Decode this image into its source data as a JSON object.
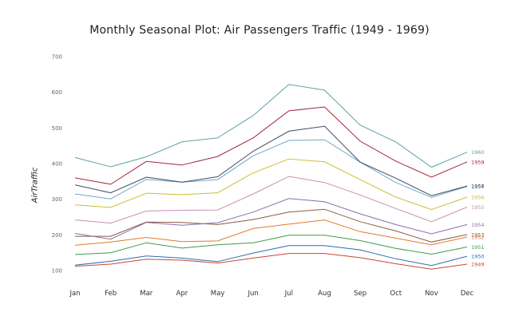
{
  "chart_data": {
    "type": "line",
    "title": "Monthly Seasonal Plot: Air Passengers Traffic (1949 - 1969)",
    "xlabel": "",
    "ylabel": "AirTraffic",
    "categories": [
      "Jan",
      "Feb",
      "Mar",
      "Apr",
      "May",
      "Jun",
      "Jul",
      "Aug",
      "Sep",
      "Oct",
      "Nov",
      "Dec"
    ],
    "ylim": [
      50,
      730
    ],
    "yticks": [
      100,
      200,
      300,
      400,
      500,
      600,
      700
    ],
    "ytick_labels": [
      "100",
      "200",
      "300",
      "400",
      "500",
      "600",
      "700"
    ],
    "grid": false,
    "series": [
      {
        "name": "1949",
        "color": "#c8473b",
        "values": [
          112,
          118,
          132,
          129,
          121,
          135,
          148,
          148,
          136,
          119,
          104,
          118
        ]
      },
      {
        "name": "1950",
        "color": "#2a6fb0",
        "values": [
          115,
          126,
          141,
          135,
          125,
          149,
          170,
          170,
          158,
          133,
          114,
          140
        ]
      },
      {
        "name": "1951",
        "color": "#3d9b4a",
        "values": [
          145,
          150,
          178,
          163,
          172,
          178,
          199,
          199,
          184,
          162,
          146,
          166
        ]
      },
      {
        "name": "1952",
        "color": "#e0792c",
        "values": [
          171,
          180,
          193,
          181,
          183,
          218,
          230,
          242,
          209,
          191,
          172,
          194
        ]
      },
      {
        "name": "1953",
        "color": "#8a5a44",
        "values": [
          196,
          196,
          236,
          235,
          229,
          243,
          264,
          272,
          237,
          211,
          180,
          201
        ]
      },
      {
        "name": "1954",
        "color": "#8b6fa8",
        "values": [
          204,
          188,
          235,
          227,
          234,
          264,
          302,
          293,
          259,
          229,
          203,
          229
        ]
      },
      {
        "name": "1955",
        "color": "#c98fb8",
        "values": [
          242,
          233,
          267,
          269,
          270,
          315,
          364,
          347,
          312,
          274,
          237,
          278
        ]
      },
      {
        "name": "1956",
        "color": "#c9c136",
        "values": [
          284,
          277,
          317,
          313,
          318,
          374,
          413,
          405,
          355,
          306,
          271,
          306
        ]
      },
      {
        "name": "1957",
        "color": "#6ea9c9",
        "values": [
          315,
          301,
          356,
          348,
          355,
          422,
          465,
          467,
          404,
          347,
          305,
          336
        ]
      },
      {
        "name": "1958",
        "color": "#3e4a66",
        "values": [
          340,
          318,
          362,
          348,
          363,
          435,
          491,
          505,
          404,
          359,
          310,
          337
        ]
      },
      {
        "name": "1959",
        "color": "#a3253b",
        "values": [
          360,
          342,
          406,
          396,
          420,
          472,
          548,
          559,
          463,
          407,
          362,
          405
        ]
      },
      {
        "name": "1960",
        "color": "#5fa0a8",
        "values": [
          417,
          391,
          419,
          461,
          472,
          535,
          622,
          606,
          508,
          461,
          390,
          432
        ]
      }
    ]
  }
}
